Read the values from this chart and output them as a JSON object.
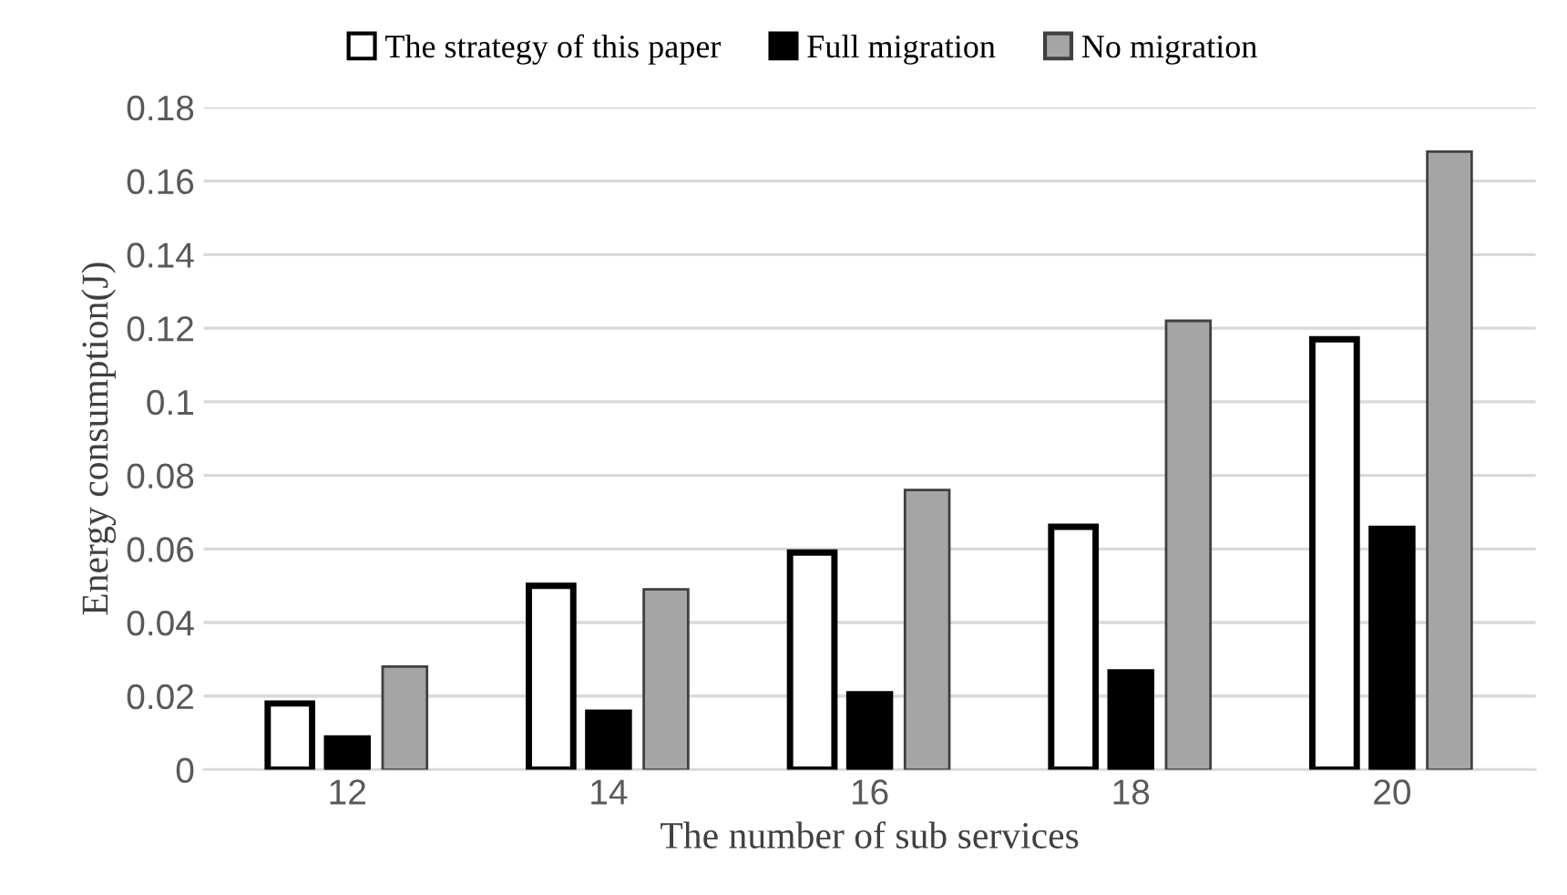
{
  "chart_data": {
    "type": "bar",
    "xlabel": "The number of sub services",
    "ylabel": "Energy consumption(J)",
    "categories": [
      "12",
      "14",
      "16",
      "18",
      "20"
    ],
    "series": [
      {
        "name": "The strategy of this paper",
        "color": "#ffffff",
        "values": [
          0.018,
          0.05,
          0.059,
          0.066,
          0.117
        ]
      },
      {
        "name": "Full migration",
        "color": "#000000",
        "values": [
          0.009,
          0.016,
          0.021,
          0.027,
          0.066
        ]
      },
      {
        "name": "No migration",
        "color": "#a5a5a5",
        "values": [
          0.028,
          0.049,
          0.076,
          0.122,
          0.168
        ]
      }
    ],
    "ylim": [
      0,
      0.18
    ],
    "yticks": [
      0,
      0.02,
      0.04,
      0.06,
      0.08,
      0.1,
      0.12,
      0.14,
      0.16,
      0.18
    ],
    "grid": "y",
    "legend": "top"
  }
}
